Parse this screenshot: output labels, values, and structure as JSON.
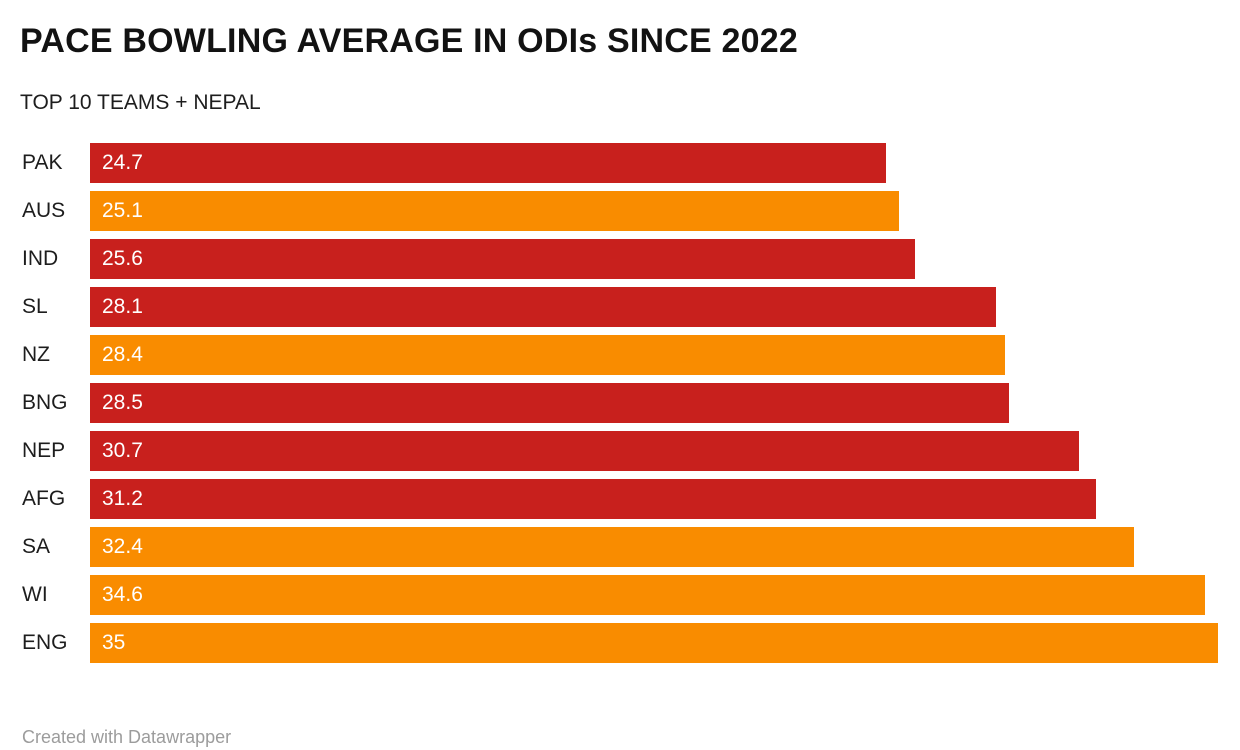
{
  "header": {
    "title": "PACE BOWLING AVERAGE IN ODIs SINCE 2022",
    "subtitle": "TOP 10 TEAMS + NEPAL"
  },
  "footer": {
    "text": "Created with Datawrapper"
  },
  "colors": {
    "red": "#c8201d",
    "orange": "#f98c00",
    "value_label": "#ffffff",
    "label_text": "#1d1d1d",
    "title_text": "#121212",
    "footer_text": "#9c9c9c"
  },
  "chart_data": {
    "type": "bar",
    "orientation": "horizontal",
    "title": "PACE BOWLING AVERAGE IN ODIs SINCE 2022",
    "subtitle": "TOP 10 TEAMS + NEPAL",
    "xlabel": "",
    "ylabel": "",
    "xlim": [
      0,
      35
    ],
    "grid": false,
    "legend": null,
    "value_label_position": "inside-start",
    "categories": [
      "PAK",
      "AUS",
      "IND",
      "SL",
      "NZ",
      "BNG",
      "NEP",
      "AFG",
      "SA",
      "WI",
      "ENG"
    ],
    "values": [
      24.7,
      25.1,
      25.6,
      28.1,
      28.4,
      28.5,
      30.7,
      31.2,
      32.4,
      34.6,
      35
    ],
    "value_labels": [
      "24.7",
      "25.1",
      "25.6",
      "28.1",
      "28.4",
      "28.5",
      "30.7",
      "31.2",
      "32.4",
      "34.6",
      "35"
    ],
    "bar_colors": [
      "red",
      "orange",
      "red",
      "red",
      "orange",
      "red",
      "red",
      "red",
      "orange",
      "orange",
      "orange"
    ]
  }
}
